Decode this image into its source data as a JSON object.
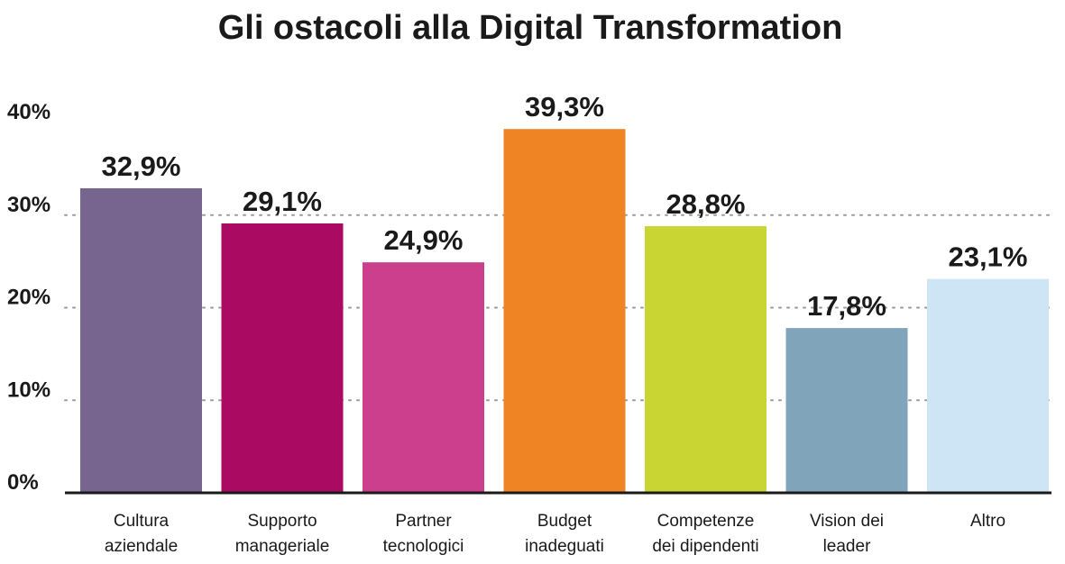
{
  "chart_data": {
    "type": "bar",
    "title": "Gli ostacoli alla Digital Transformation",
    "xlabel": "",
    "ylabel": "",
    "ylim": [
      0,
      40
    ],
    "yticks": [
      "0%",
      "10%",
      "20%",
      "30%",
      "40%"
    ],
    "grid": true,
    "categories": [
      [
        "Cultura",
        "aziendale"
      ],
      [
        "Supporto",
        "manageriale"
      ],
      [
        "Partner",
        "tecnologici"
      ],
      [
        "Budget",
        "inadeguati"
      ],
      [
        "Competenze",
        "dei dipendenti"
      ],
      [
        "Vision dei",
        "leader"
      ],
      [
        "Altro"
      ]
    ],
    "values": [
      32.9,
      29.1,
      24.9,
      39.3,
      28.8,
      17.8,
      23.1
    ],
    "value_labels": [
      "32,9%",
      "29,1%",
      "24,9%",
      "39,3%",
      "28,8%",
      "17,8%",
      "23,1%"
    ],
    "colors": [
      "#77648f",
      "#ab0a62",
      "#cb3f8d",
      "#ee8424",
      "#c8d533",
      "#80a5bb",
      "#cde5f4"
    ]
  }
}
